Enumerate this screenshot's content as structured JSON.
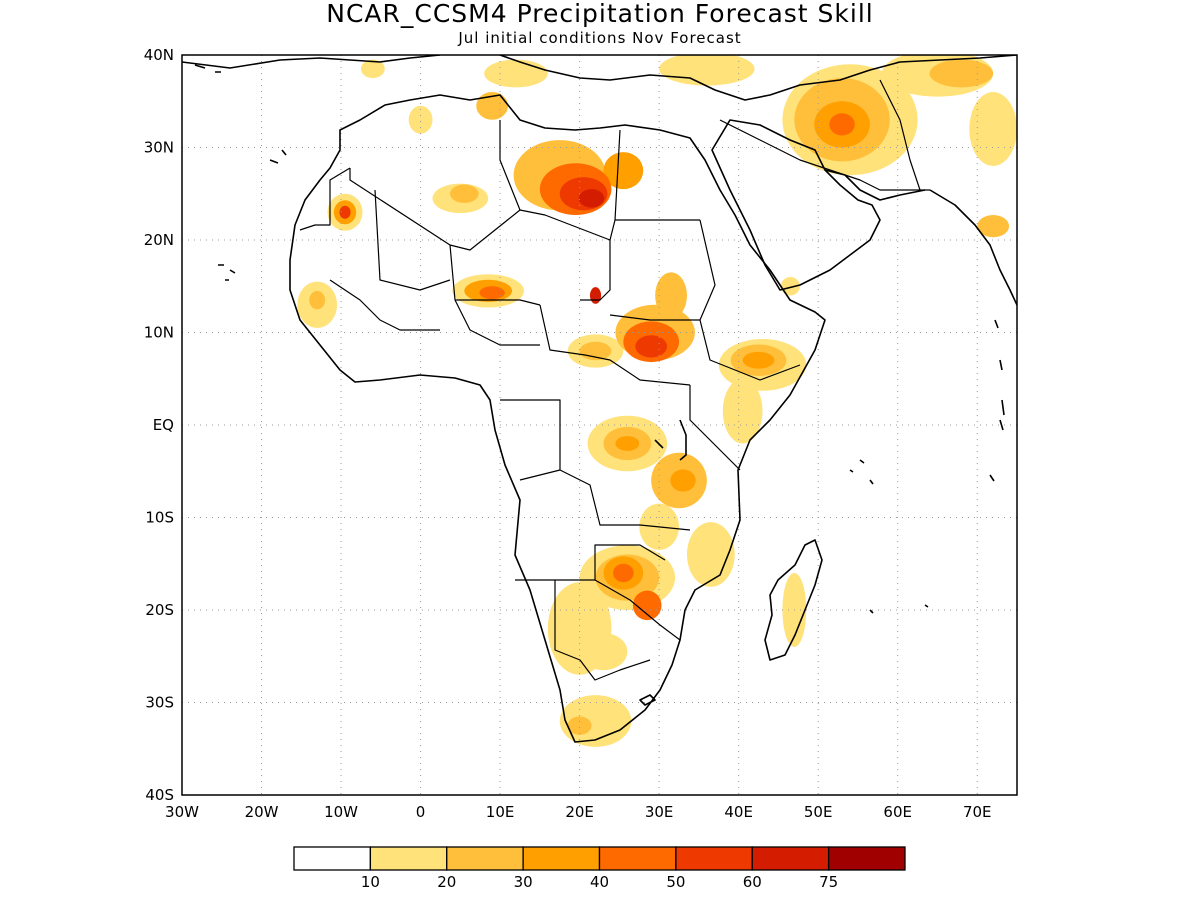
{
  "title": "NCAR_CCSM4 Precipitation Forecast Skill",
  "subtitle": "Jul initial conditions   Nov Forecast",
  "map": {
    "lon_range": [
      -30,
      75
    ],
    "lat_range": [
      -40,
      40
    ],
    "lon_ticks": [
      {
        "value": -30,
        "label": "30W"
      },
      {
        "value": -20,
        "label": "20W"
      },
      {
        "value": -10,
        "label": "10W"
      },
      {
        "value": 0,
        "label": "0"
      },
      {
        "value": 10,
        "label": "10E"
      },
      {
        "value": 20,
        "label": "20E"
      },
      {
        "value": 30,
        "label": "30E"
      },
      {
        "value": 40,
        "label": "40E"
      },
      {
        "value": 50,
        "label": "50E"
      },
      {
        "value": 60,
        "label": "60E"
      },
      {
        "value": 70,
        "label": "70E"
      }
    ],
    "lat_ticks": [
      {
        "value": 40,
        "label": "40N"
      },
      {
        "value": 30,
        "label": "30N"
      },
      {
        "value": 20,
        "label": "20N"
      },
      {
        "value": 10,
        "label": "10N"
      },
      {
        "value": 0,
        "label": "EQ"
      },
      {
        "value": -10,
        "label": "10S"
      },
      {
        "value": -20,
        "label": "20S"
      },
      {
        "value": -30,
        "label": "30S"
      },
      {
        "value": -40,
        "label": "40S"
      }
    ],
    "grid": true
  },
  "colorbar": {
    "levels": [
      "10",
      "20",
      "30",
      "40",
      "50",
      "60",
      "75"
    ],
    "colors": [
      "#ffffff",
      "#ffe27a",
      "#ffbf3a",
      "#ff9f00",
      "#ff6a00",
      "#ee3a00",
      "#d41c00",
      "#a00000"
    ]
  },
  "skill_regions": [
    {
      "lon": 18,
      "lat": 27,
      "rx": 3.6,
      "ry": 1.6,
      "level": 1
    },
    {
      "lon": 17.5,
      "lat": 27,
      "rx": 5.8,
      "ry": 3.8,
      "level": 2
    },
    {
      "lon": 19.5,
      "lat": 25.5,
      "rx": 4.5,
      "ry": 2.8,
      "level": 4
    },
    {
      "lon": 20.5,
      "lat": 25,
      "rx": 3.0,
      "ry": 1.8,
      "level": 5
    },
    {
      "lon": 21.5,
      "lat": 24.5,
      "rx": 1.6,
      "ry": 1.0,
      "level": 6
    },
    {
      "lon": 25.5,
      "lat": 27.5,
      "rx": 2.5,
      "ry": 2.0,
      "level": 3
    },
    {
      "lon": 5,
      "lat": 24.5,
      "rx": 3.5,
      "ry": 1.6,
      "level": 1
    },
    {
      "lon": 5.5,
      "lat": 25,
      "rx": 1.8,
      "ry": 1.0,
      "level": 2
    },
    {
      "lon": -9.5,
      "lat": 23,
      "rx": 2.2,
      "ry": 2.0,
      "level": 1
    },
    {
      "lon": -9.5,
      "lat": 23,
      "rx": 1.4,
      "ry": 1.3,
      "level": 3
    },
    {
      "lon": -9.5,
      "lat": 23,
      "rx": 0.7,
      "ry": 0.7,
      "level": 5
    },
    {
      "lon": 8.5,
      "lat": 14.5,
      "rx": 4.5,
      "ry": 1.8,
      "level": 1
    },
    {
      "lon": 8.5,
      "lat": 14.5,
      "rx": 3.0,
      "ry": 1.2,
      "level": 3
    },
    {
      "lon": 9,
      "lat": 14.3,
      "rx": 1.6,
      "ry": 0.7,
      "level": 4
    },
    {
      "lon": 29.5,
      "lat": 10,
      "rx": 5.0,
      "ry": 3.0,
      "level": 2
    },
    {
      "lon": 29,
      "lat": 9,
      "rx": 3.5,
      "ry": 2.2,
      "level": 4
    },
    {
      "lon": 29,
      "lat": 8.5,
      "rx": 2.0,
      "ry": 1.2,
      "level": 5
    },
    {
      "lon": 31.5,
      "lat": 14,
      "rx": 2.0,
      "ry": 2.5,
      "level": 2
    },
    {
      "lon": 22,
      "lat": 14,
      "rx": 0.7,
      "ry": 0.9,
      "level": 6
    },
    {
      "lon": 22,
      "lat": 8,
      "rx": 3.5,
      "ry": 1.8,
      "level": 1
    },
    {
      "lon": 22,
      "lat": 8,
      "rx": 2.0,
      "ry": 1.0,
      "level": 2
    },
    {
      "lon": 43,
      "lat": 6.5,
      "rx": 5.5,
      "ry": 2.8,
      "level": 1
    },
    {
      "lon": 42.5,
      "lat": 7,
      "rx": 3.5,
      "ry": 1.7,
      "level": 2
    },
    {
      "lon": 42.5,
      "lat": 7,
      "rx": 2.0,
      "ry": 0.9,
      "level": 3
    },
    {
      "lon": 40.5,
      "lat": 1.5,
      "rx": 2.5,
      "ry": 3.5,
      "level": 1
    },
    {
      "lon": 26,
      "lat": -2,
      "rx": 5.0,
      "ry": 3.0,
      "level": 1
    },
    {
      "lon": 26,
      "lat": -2,
      "rx": 3.0,
      "ry": 1.8,
      "level": 2
    },
    {
      "lon": 26,
      "lat": -2,
      "rx": 1.5,
      "ry": 0.8,
      "level": 3
    },
    {
      "lon": 32.5,
      "lat": -6,
      "rx": 3.5,
      "ry": 3.0,
      "level": 2
    },
    {
      "lon": 33,
      "lat": -6,
      "rx": 1.6,
      "ry": 1.2,
      "level": 3
    },
    {
      "lon": 36.5,
      "lat": -14,
      "rx": 3.0,
      "ry": 3.5,
      "level": 1
    },
    {
      "lon": 30,
      "lat": -11,
      "rx": 2.5,
      "ry": 2.5,
      "level": 1
    },
    {
      "lon": 26,
      "lat": -16.5,
      "rx": 6.0,
      "ry": 3.5,
      "level": 1
    },
    {
      "lon": 26,
      "lat": -16.5,
      "rx": 4.0,
      "ry": 2.5,
      "level": 2
    },
    {
      "lon": 25.5,
      "lat": -16,
      "rx": 2.5,
      "ry": 1.8,
      "level": 3
    },
    {
      "lon": 25.5,
      "lat": -16,
      "rx": 1.3,
      "ry": 1.0,
      "level": 4
    },
    {
      "lon": 28.5,
      "lat": -19.5,
      "rx": 1.8,
      "ry": 1.6,
      "level": 4
    },
    {
      "lon": 20,
      "lat": -22,
      "rx": 4.0,
      "ry": 5.0,
      "level": 1
    },
    {
      "lon": 23,
      "lat": -24.5,
      "rx": 3.0,
      "ry": 2.0,
      "level": 1
    },
    {
      "lon": 22,
      "lat": -32,
      "rx": 4.5,
      "ry": 2.8,
      "level": 1
    },
    {
      "lon": 20,
      "lat": -32.5,
      "rx": 1.5,
      "ry": 1.0,
      "level": 2
    },
    {
      "lon": 47,
      "lat": -20,
      "rx": 1.5,
      "ry": 4.0,
      "level": 1
    },
    {
      "lon": 9,
      "lat": 34.5,
      "rx": 2.0,
      "ry": 1.5,
      "level": 2
    },
    {
      "lon": 0,
      "lat": 33,
      "rx": 1.5,
      "ry": 1.5,
      "level": 1
    },
    {
      "lon": -6,
      "lat": 38.5,
      "rx": 1.5,
      "ry": 1.0,
      "level": 1
    },
    {
      "lon": 12,
      "lat": 38,
      "rx": 4.0,
      "ry": 1.5,
      "level": 1
    },
    {
      "lon": 36,
      "lat": 38.5,
      "rx": 6.0,
      "ry": 1.8,
      "level": 1
    },
    {
      "lon": 54,
      "lat": 33,
      "rx": 8.5,
      "ry": 6.0,
      "level": 1
    },
    {
      "lon": 53,
      "lat": 33,
      "rx": 6.0,
      "ry": 4.5,
      "level": 2
    },
    {
      "lon": 53,
      "lat": 32.5,
      "rx": 3.5,
      "ry": 2.5,
      "level": 3
    },
    {
      "lon": 53,
      "lat": 32.5,
      "rx": 1.6,
      "ry": 1.2,
      "level": 4
    },
    {
      "lon": 65,
      "lat": 38,
      "rx": 7.0,
      "ry": 2.5,
      "level": 1
    },
    {
      "lon": 68,
      "lat": 38,
      "rx": 4.0,
      "ry": 1.5,
      "level": 2
    },
    {
      "lon": 72,
      "lat": 32,
      "rx": 3.0,
      "ry": 4.0,
      "level": 1
    },
    {
      "lon": 72,
      "lat": 21.5,
      "rx": 2.0,
      "ry": 1.2,
      "level": 2
    },
    {
      "lon": 46.5,
      "lat": 15,
      "rx": 1.2,
      "ry": 1.0,
      "level": 1
    },
    {
      "lon": -13,
      "lat": 13,
      "rx": 2.5,
      "ry": 2.5,
      "level": 1
    },
    {
      "lon": -13,
      "lat": 13.5,
      "rx": 1.0,
      "ry": 1.0,
      "level": 2
    }
  ]
}
